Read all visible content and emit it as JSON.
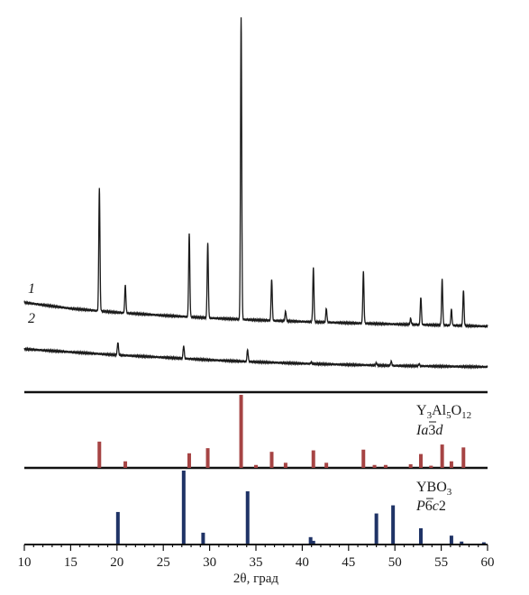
{
  "chart_data": {
    "type": "line",
    "xlabel": "2θ, град",
    "xlim": [
      10,
      60
    ],
    "x_ticks": [
      "10",
      "15",
      "20",
      "25",
      "30",
      "35",
      "40",
      "45",
      "50",
      "55",
      "60"
    ],
    "patterns": [
      {
        "label": "1",
        "color": "#1a1a1a",
        "baseline": [
          [
            10,
            12
          ],
          [
            15,
            9
          ],
          [
            20,
            7
          ],
          [
            25,
            5.5
          ],
          [
            30,
            4.2
          ],
          [
            35,
            3.2
          ],
          [
            40,
            2.4
          ],
          [
            45,
            1.7
          ],
          [
            50,
            1.1
          ],
          [
            55,
            0.6
          ],
          [
            60,
            0
          ]
        ],
        "peaks": [
          {
            "x": 18.1,
            "h": 62
          },
          {
            "x": 20.9,
            "h": 14
          },
          {
            "x": 27.8,
            "h": 42
          },
          {
            "x": 29.8,
            "h": 38
          },
          {
            "x": 33.4,
            "h": 152
          },
          {
            "x": 36.7,
            "h": 21
          },
          {
            "x": 38.2,
            "h": 5
          },
          {
            "x": 41.2,
            "h": 27
          },
          {
            "x": 42.6,
            "h": 7
          },
          {
            "x": 46.6,
            "h": 26
          },
          {
            "x": 51.7,
            "h": 3
          },
          {
            "x": 52.8,
            "h": 14
          },
          {
            "x": 55.1,
            "h": 23
          },
          {
            "x": 56.1,
            "h": 8
          },
          {
            "x": 57.4,
            "h": 18
          }
        ]
      },
      {
        "label": "2",
        "color": "#1a1a1a",
        "baseline": [
          [
            10,
            9
          ],
          [
            15,
            7.5
          ],
          [
            20,
            6
          ],
          [
            25,
            4.8
          ],
          [
            30,
            3.5
          ],
          [
            35,
            2.5
          ],
          [
            40,
            1.7
          ],
          [
            45,
            1.1
          ],
          [
            50,
            0.6
          ],
          [
            55,
            0.3
          ],
          [
            60,
            0
          ]
        ],
        "peaks": [
          {
            "x": 20.1,
            "h": 6.5
          },
          {
            "x": 27.2,
            "h": 6.5
          },
          {
            "x": 34.1,
            "h": 6
          },
          {
            "x": 41.0,
            "h": 0.8
          },
          {
            "x": 48.0,
            "h": 1.2
          },
          {
            "x": 49.6,
            "h": 2.2
          },
          {
            "x": 52.6,
            "h": 1
          }
        ]
      }
    ],
    "reference_phases": [
      {
        "formula": "Y3Al5O12",
        "space_group": "Ia3d",
        "color": "#a64444",
        "lines": [
          {
            "x": 18.1,
            "h": 36
          },
          {
            "x": 20.9,
            "h": 9
          },
          {
            "x": 27.8,
            "h": 20
          },
          {
            "x": 29.8,
            "h": 27
          },
          {
            "x": 33.4,
            "h": 100
          },
          {
            "x": 35.0,
            "h": 4
          },
          {
            "x": 36.7,
            "h": 22
          },
          {
            "x": 38.2,
            "h": 7
          },
          {
            "x": 41.2,
            "h": 24
          },
          {
            "x": 42.6,
            "h": 7
          },
          {
            "x": 46.6,
            "h": 25
          },
          {
            "x": 47.8,
            "h": 4
          },
          {
            "x": 49.0,
            "h": 4
          },
          {
            "x": 51.7,
            "h": 5
          },
          {
            "x": 52.8,
            "h": 19
          },
          {
            "x": 53.9,
            "h": 3
          },
          {
            "x": 55.1,
            "h": 32
          },
          {
            "x": 56.1,
            "h": 9
          },
          {
            "x": 57.4,
            "h": 28
          }
        ]
      },
      {
        "formula": "YBO3",
        "space_group": "P6c2",
        "color": "#1f3366",
        "lines": [
          {
            "x": 20.1,
            "h": 44
          },
          {
            "x": 27.2,
            "h": 100
          },
          {
            "x": 29.3,
            "h": 16
          },
          {
            "x": 34.1,
            "h": 72
          },
          {
            "x": 40.9,
            "h": 10
          },
          {
            "x": 41.2,
            "h": 5
          },
          {
            "x": 48.0,
            "h": 42
          },
          {
            "x": 49.8,
            "h": 53
          },
          {
            "x": 52.8,
            "h": 22
          },
          {
            "x": 56.1,
            "h": 12
          },
          {
            "x": 57.2,
            "h": 4
          },
          {
            "x": 59.6,
            "h": 3
          }
        ]
      }
    ]
  }
}
